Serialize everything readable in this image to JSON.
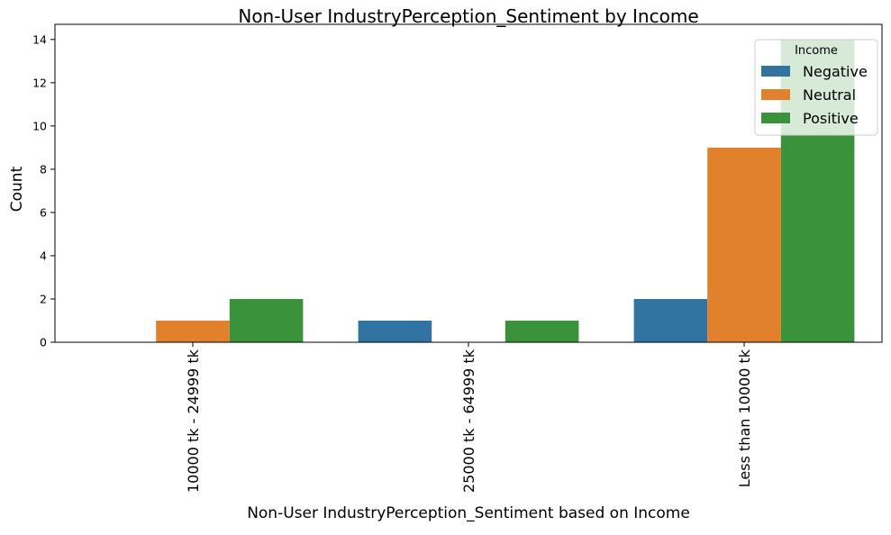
{
  "chart_data": {
    "type": "bar",
    "title": "Non-User IndustryPerception_Sentiment by Income",
    "xlabel": "Non-User IndustryPerception_Sentiment based on Income",
    "ylabel": "Count",
    "categories": [
      "10000 tk - 24999 tk",
      "25000 tk - 64999 tk",
      "Less than 10000 tk"
    ],
    "series": [
      {
        "name": "Negative",
        "values": [
          0,
          1,
          2
        ],
        "color": "#3274a1"
      },
      {
        "name": "Neutral",
        "values": [
          1,
          0,
          9
        ],
        "color": "#e1812c"
      },
      {
        "name": "Positive",
        "values": [
          2,
          1,
          14
        ],
        "color": "#3a923a"
      }
    ],
    "ylim": [
      0,
      14.7
    ],
    "yticks": [
      0,
      2,
      4,
      6,
      8,
      10,
      12,
      14
    ],
    "grid": false,
    "legend": {
      "title": "Income",
      "placement": "top-right"
    }
  }
}
